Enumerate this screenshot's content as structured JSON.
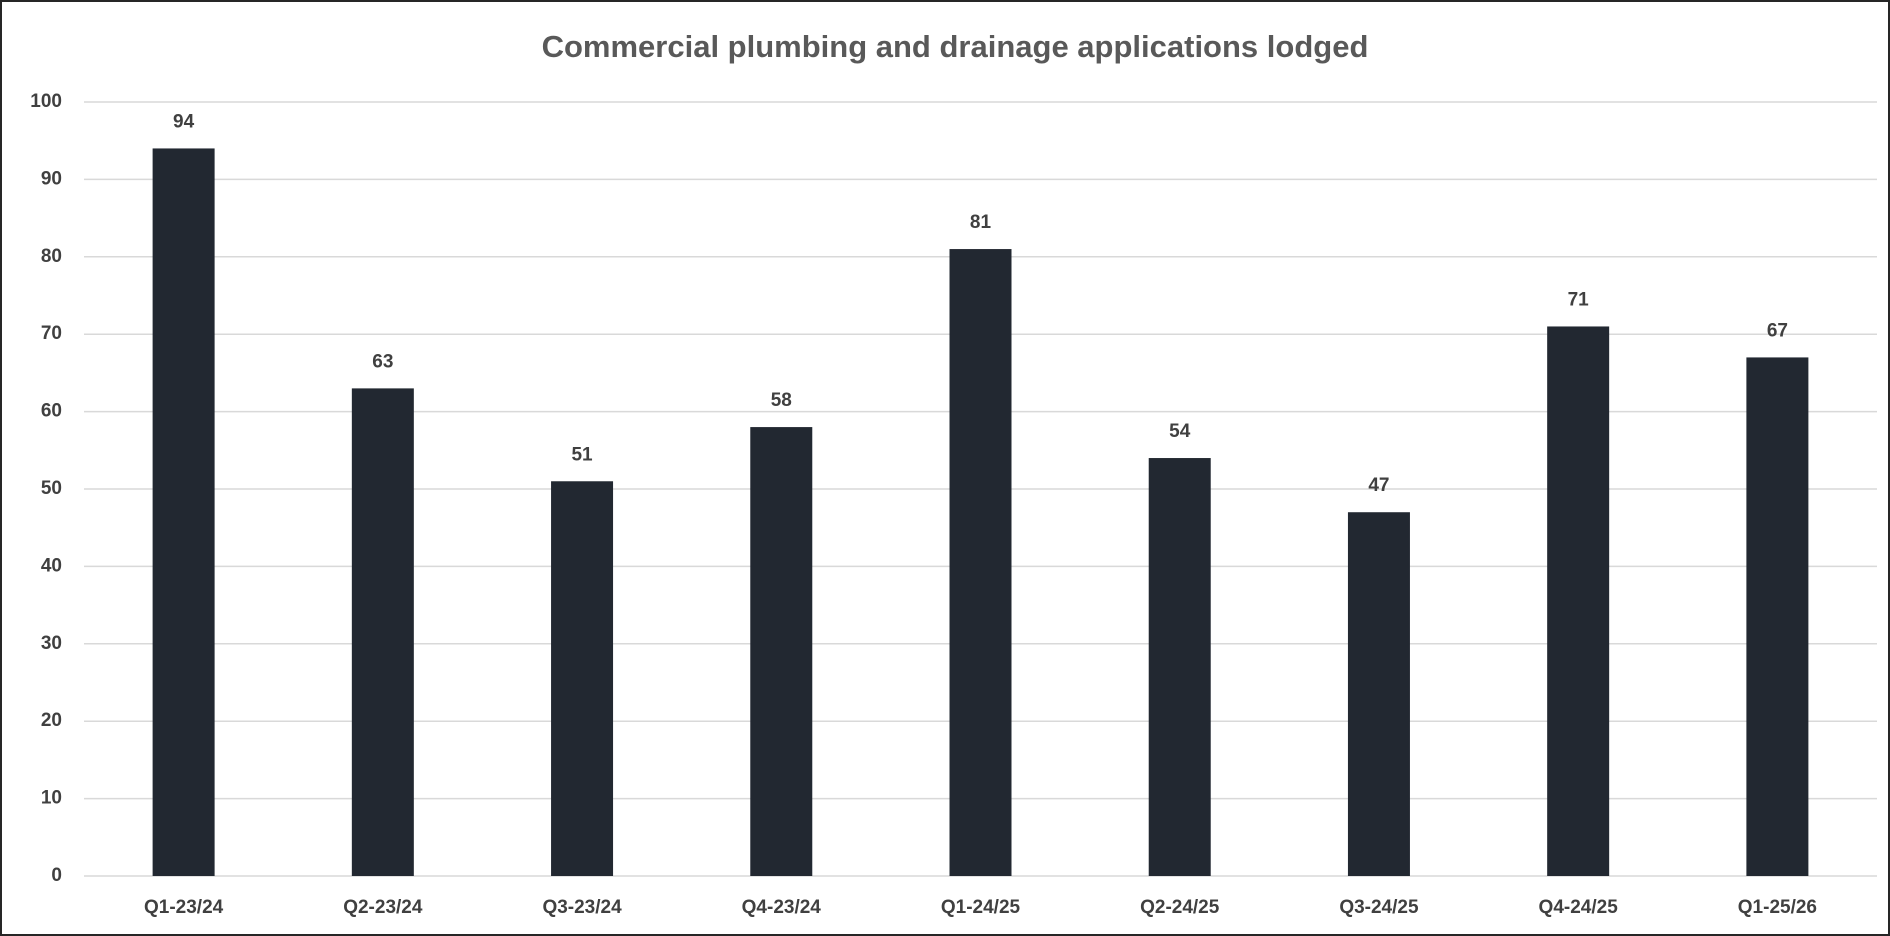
{
  "chart_data": {
    "type": "bar",
    "title": "Commercial plumbing and drainage applications lodged",
    "categories": [
      "Q1-23/24",
      "Q2-23/24",
      "Q3-23/24",
      "Q4-23/24",
      "Q1-24/25",
      "Q2-24/25",
      "Q3-24/25",
      "Q4-24/25",
      "Q1-25/26"
    ],
    "values": [
      94,
      63,
      51,
      58,
      81,
      54,
      47,
      71,
      67
    ],
    "color": "#222831",
    "ylim": [
      0,
      100
    ],
    "yticks": [
      0,
      10,
      20,
      30,
      40,
      50,
      60,
      70,
      80,
      90,
      100
    ],
    "grid": true
  }
}
